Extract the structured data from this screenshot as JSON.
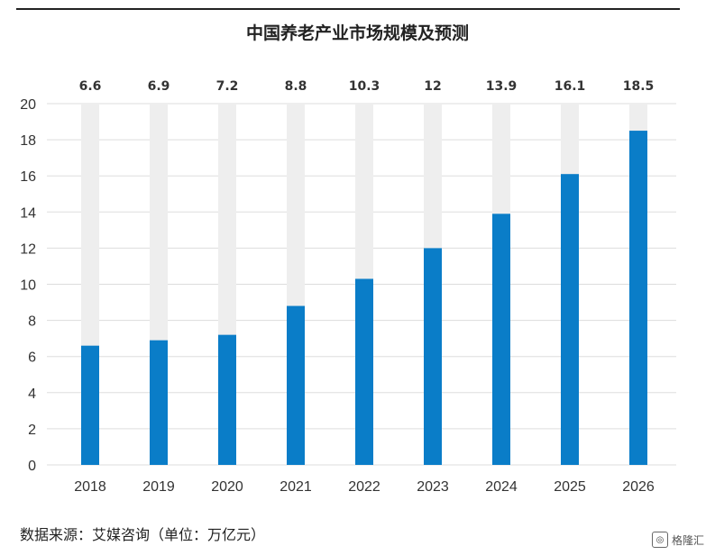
{
  "title": "中国养老产业市场规模及预测",
  "source": "数据来源：艾媒咨询（单位：万亿元）",
  "watermark": "格隆汇",
  "colors": {
    "bar": "#0a7dc8",
    "track": "#eeeeee",
    "grid": "#dddddd",
    "text": "#333333"
  },
  "chart_data": {
    "type": "bar",
    "title": "中国养老产业市场规模及预测",
    "categories": [
      "2018",
      "2019",
      "2020",
      "2021",
      "2022",
      "2023",
      "2024",
      "2025",
      "2026"
    ],
    "values": [
      6.6,
      6.9,
      7.2,
      8.8,
      10.3,
      12,
      13.9,
      16.1,
      18.5
    ],
    "value_labels": [
      "6.6",
      "6.9",
      "7.2",
      "8.8",
      "10.3",
      "12",
      "13.9",
      "16.1",
      "18.5"
    ],
    "ylim": [
      0,
      20
    ],
    "yticks": [
      0,
      2,
      4,
      6,
      8,
      10,
      12,
      14,
      16,
      18,
      20
    ],
    "grid": true,
    "background_track": true,
    "xlabel": "",
    "ylabel": ""
  }
}
